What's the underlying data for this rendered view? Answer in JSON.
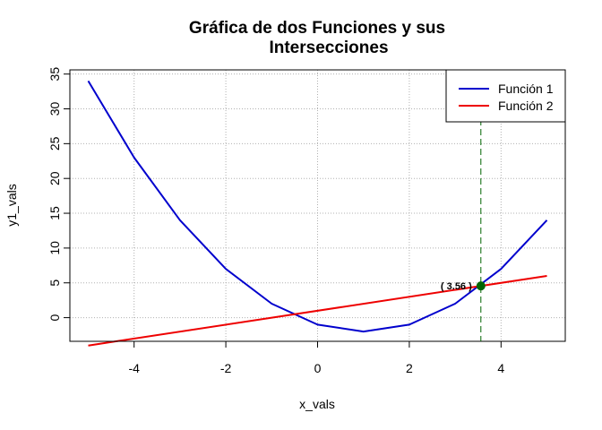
{
  "chart_data": {
    "type": "line",
    "title_line1": "Gráfica de dos Funciones y sus",
    "title_line2": "Intersecciones",
    "xlabel": "x_vals",
    "ylabel": "y1_vals",
    "xlim": [
      -5.4,
      5.4
    ],
    "ylim": [
      -3.4,
      35.6
    ],
    "x_ticks": [
      -4,
      -2,
      0,
      2,
      4
    ],
    "y_ticks": [
      0,
      5,
      10,
      15,
      20,
      25,
      30,
      35
    ],
    "x_tick_labels": [
      "-4",
      "-2",
      "0",
      "2",
      "4"
    ],
    "y_tick_labels": [
      "0",
      "5",
      "10",
      "15",
      "20",
      "25",
      "30",
      "35"
    ],
    "grid": true,
    "legend_position": "top-right",
    "series": [
      {
        "name": "Función 1",
        "color": "#0000cd",
        "x": [
          -5,
          -4,
          -3,
          -2,
          -1,
          0,
          1,
          2,
          3,
          4,
          5
        ],
        "y": [
          34,
          23,
          14,
          7,
          2,
          -1,
          -2,
          -1,
          2,
          7,
          14
        ]
      },
      {
        "name": "Función 2",
        "color": "#ee0000",
        "x": [
          -5,
          5
        ],
        "y": [
          -4,
          6
        ]
      }
    ],
    "intersection": {
      "x": 3.56,
      "y": 4.56,
      "label": "( 3.56 )",
      "point_color": "#006400",
      "line_color": "#006400"
    }
  }
}
